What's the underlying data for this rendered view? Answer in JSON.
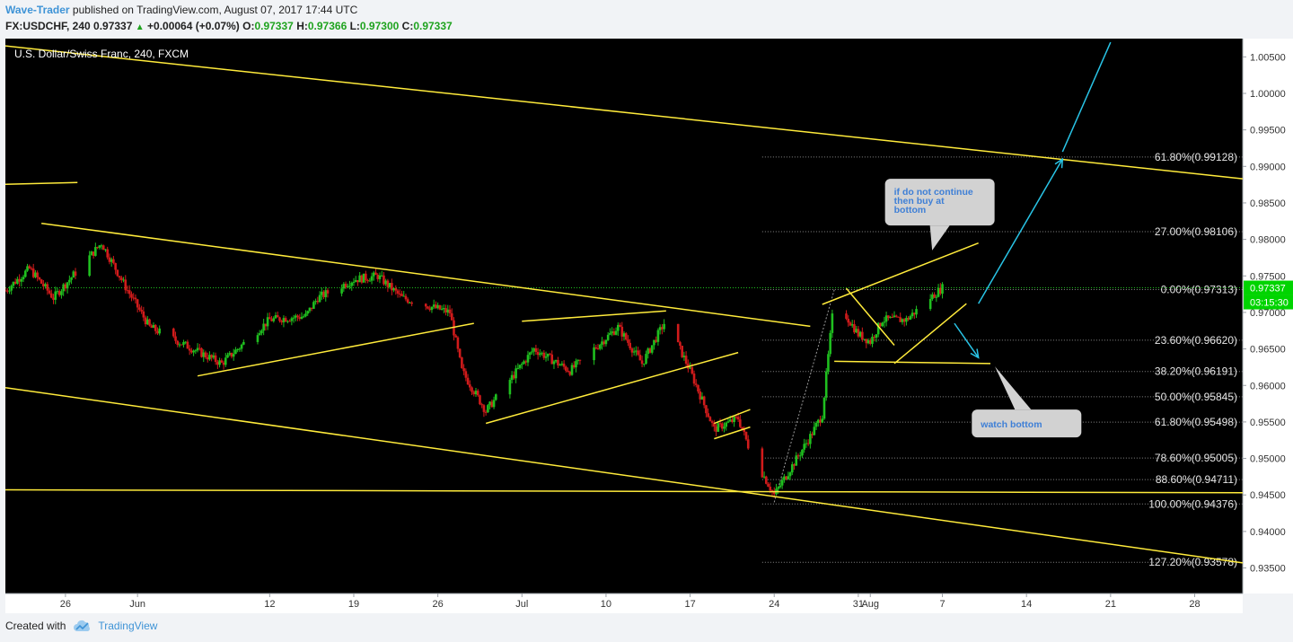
{
  "header": {
    "author": "Wave-Trader",
    "published": " published on TradingView.com, August 07, 2017 17:44 UTC",
    "symbol": "FX:USDCHF, 240",
    "last": "0.97337",
    "change": "+0.00064 (+0.07%)",
    "o_label": "O:",
    "o": "0.97337",
    "h_label": "H:",
    "h": "0.97366",
    "l_label": "L:",
    "l": "0.97300",
    "c_label": "C:",
    "c": "0.97337"
  },
  "footer": {
    "created_with": "Created with",
    "brand": "TradingView"
  },
  "colors": {
    "background": "#000000",
    "bull": "#1fbf1f",
    "bear": "#d11b1b",
    "trendline": "#ffeb3b",
    "arrow": "#29c4e6",
    "price_tag": "#00d400"
  },
  "chart_data": {
    "type": "candlestick",
    "title": "U.S. Dollar/Swiss Franc, 240, FXCM",
    "ylim": [
      0.9315,
      1.0075
    ],
    "x_range": [
      "2017-05-21",
      "2017-09-01"
    ],
    "x_ticks": [
      {
        "label": "26",
        "date": "2017-05-26"
      },
      {
        "label": "Jun",
        "date": "2017-06-01"
      },
      {
        "label": "12",
        "date": "2017-06-12"
      },
      {
        "label": "19",
        "date": "2017-06-19"
      },
      {
        "label": "26",
        "date": "2017-06-26"
      },
      {
        "label": "Jul",
        "date": "2017-07-03"
      },
      {
        "label": "10",
        "date": "2017-07-10"
      },
      {
        "label": "17",
        "date": "2017-07-17"
      },
      {
        "label": "24",
        "date": "2017-07-24"
      },
      {
        "label": "31",
        "date": "2017-07-31"
      },
      {
        "label": "Aug",
        "date": "2017-08-01"
      },
      {
        "label": "7",
        "date": "2017-08-07"
      },
      {
        "label": "14",
        "date": "2017-08-14"
      },
      {
        "label": "21",
        "date": "2017-08-21"
      },
      {
        "label": "28",
        "date": "2017-08-28"
      }
    ],
    "y_ticks": [
      "1.00500",
      "1.00000",
      "0.99500",
      "0.99000",
      "0.98500",
      "0.98000",
      "0.97500",
      "0.97000",
      "0.96500",
      "0.96000",
      "0.95500",
      "0.95000",
      "0.94500",
      "0.94000",
      "0.93500"
    ],
    "current_price": "0.97337",
    "countdown": "03:15:30",
    "price_path": [
      [
        "2017-05-21",
        0.973
      ],
      [
        "2017-05-23",
        0.976
      ],
      [
        "2017-05-25",
        0.972
      ],
      [
        "2017-05-29",
        0.9795
      ],
      [
        "2017-05-31",
        0.9735
      ],
      [
        "2017-06-02",
        0.968
      ],
      [
        "2017-06-05",
        0.9655
      ],
      [
        "2017-06-08",
        0.963
      ],
      [
        "2017-06-12",
        0.969
      ],
      [
        "2017-06-15",
        0.9695
      ],
      [
        "2017-06-16",
        0.972
      ],
      [
        "2017-06-19",
        0.9745
      ],
      [
        "2017-06-21",
        0.975
      ],
      [
        "2017-06-23",
        0.972
      ],
      [
        "2017-06-27",
        0.97
      ],
      [
        "2017-06-28",
        0.962
      ],
      [
        "2017-06-30",
        0.9565
      ],
      [
        "2017-07-04",
        0.965
      ],
      [
        "2017-07-07",
        0.962
      ],
      [
        "2017-07-11",
        0.968
      ],
      [
        "2017-07-13",
        0.963
      ],
      [
        "2017-07-15",
        0.969
      ],
      [
        "2017-07-17",
        0.962
      ],
      [
        "2017-07-19",
        0.954
      ],
      [
        "2017-07-21",
        0.9555
      ],
      [
        "2017-07-22",
        0.951
      ],
      [
        "2017-07-24",
        0.945
      ],
      [
        "2017-07-27",
        0.953
      ],
      [
        "2017-07-28",
        0.956
      ],
      [
        "2017-07-29",
        0.972
      ],
      [
        "2017-07-31",
        0.967
      ],
      [
        "2017-08-01",
        0.966
      ],
      [
        "2017-08-02",
        0.969
      ],
      [
        "2017-08-04",
        0.969
      ],
      [
        "2017-08-06",
        0.972
      ],
      [
        "2017-08-07",
        0.97337
      ]
    ],
    "fibonacci": [
      {
        "label": "61.80%(0.99128)",
        "value": 0.99128
      },
      {
        "label": "27.00%(0.98106)",
        "value": 0.98106
      },
      {
        "label": "0.00%(0.97313)",
        "value": 0.97313
      },
      {
        "label": "23.60%(0.96620)",
        "value": 0.9662
      },
      {
        "label": "38.20%(0.96191)",
        "value": 0.96191
      },
      {
        "label": "50.00%(0.95845)",
        "value": 0.95845
      },
      {
        "label": "61.80%(0.95498)",
        "value": 0.95498
      },
      {
        "label": "78.60%(0.95005)",
        "value": 0.95005
      },
      {
        "label": "88.60%(0.94711)",
        "value": 0.94711
      },
      {
        "label": "100.00%(0.94376)",
        "value": 0.94376
      },
      {
        "label": "127.20%(0.93578)",
        "value": 0.93578
      }
    ],
    "fib_start": "2017-07-23",
    "trendlines": [
      [
        [
          "2017-05-21",
          1.0065
        ],
        [
          "2017-09-01",
          0.9883
        ]
      ],
      [
        [
          "2017-05-20",
          0.9875
        ],
        [
          "2017-05-27",
          0.9878
        ]
      ],
      [
        [
          "2017-05-24",
          0.9822
        ],
        [
          "2017-07-27",
          0.9681
        ]
      ],
      [
        [
          "2017-05-21",
          0.9597
        ],
        [
          "2017-09-01",
          0.9357
        ]
      ],
      [
        [
          "2017-05-21",
          0.9457
        ],
        [
          "2017-09-01",
          0.9453
        ]
      ],
      [
        [
          "2017-06-06",
          0.9613
        ],
        [
          "2017-06-29",
          0.9685
        ]
      ],
      [
        [
          "2017-07-03",
          0.9688
        ],
        [
          "2017-07-15",
          0.9702
        ]
      ],
      [
        [
          "2017-06-30",
          0.9548
        ],
        [
          "2017-07-21",
          0.9645
        ]
      ],
      [
        [
          "2017-07-19",
          0.9548
        ],
        [
          "2017-07-22",
          0.9567
        ]
      ],
      [
        [
          "2017-07-19",
          0.9527
        ],
        [
          "2017-07-22",
          0.9543
        ]
      ],
      [
        [
          "2017-07-28",
          0.9711
        ],
        [
          "2017-08-10",
          0.9795
        ]
      ],
      [
        [
          "2017-07-30",
          0.9733
        ],
        [
          "2017-08-03",
          0.9655
        ]
      ],
      [
        [
          "2017-08-03",
          0.963
        ],
        [
          "2017-08-09",
          0.9712
        ]
      ],
      [
        [
          "2017-07-29",
          0.9633
        ],
        [
          "2017-08-11",
          0.963
        ]
      ]
    ],
    "arrows": [
      [
        [
          "2017-08-08",
          0.9685
        ],
        [
          "2017-08-10",
          0.9638
        ]
      ],
      [
        [
          "2017-08-10",
          0.9712
        ],
        [
          "2017-08-17",
          0.991
        ]
      ],
      [
        [
          "2017-08-17",
          0.992
        ],
        [
          "2017-08-21",
          1.007
        ]
      ]
    ],
    "annotations": [
      {
        "text": "if do not continue then buy at bottom",
        "lines": [
          "if do not continue",
          "then buy at",
          "bottom"
        ]
      },
      {
        "text": "watch bottom",
        "lines": [
          "watch bottom"
        ]
      }
    ]
  }
}
